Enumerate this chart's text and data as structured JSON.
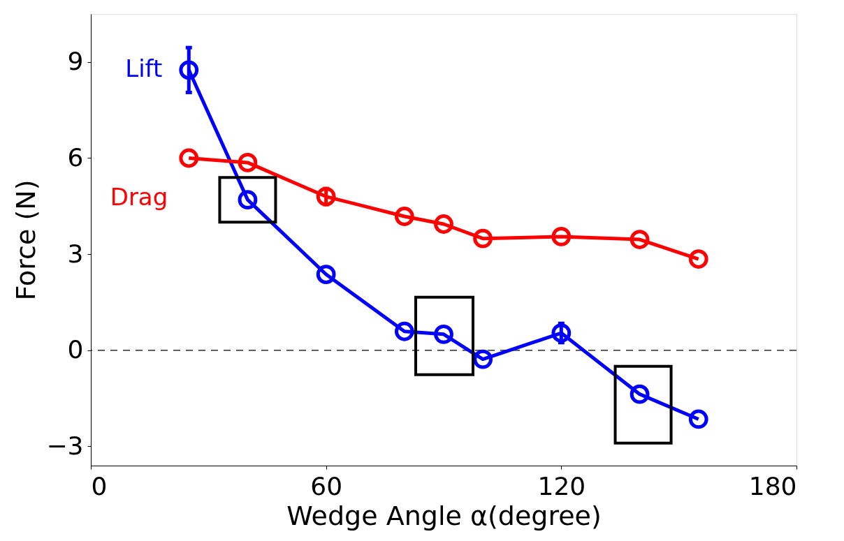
{
  "chart_data": {
    "type": "line",
    "xlabel": "Wedge Angle  α(degree)",
    "ylabel": "Force (N)",
    "x": [
      25,
      40,
      60,
      80,
      90,
      100,
      120,
      140,
      155
    ],
    "series": [
      {
        "name": "Lift",
        "color": "#0000ff",
        "values": [
          8.75,
          4.7,
          2.37,
          0.59,
          0.5,
          -0.28,
          0.54,
          -1.37,
          -2.15
        ],
        "errors": [
          0.7,
          null,
          null,
          null,
          null,
          null,
          0.3,
          null,
          null
        ]
      },
      {
        "name": "Drag",
        "color": "#ff0000",
        "values": [
          6.0,
          5.86,
          4.8,
          4.18,
          3.94,
          3.49,
          3.55,
          3.46,
          2.85
        ],
        "errors": [
          null,
          null,
          0.25,
          null,
          null,
          null,
          null,
          null,
          null
        ]
      }
    ],
    "xlim": [
      0,
      180
    ],
    "xticks": [
      0,
      60,
      120,
      180
    ],
    "ylim": [
      -3.6,
      10.5
    ],
    "yticks": [
      -3,
      0,
      3,
      6,
      9
    ],
    "ref_lines": [
      {
        "axis": "y",
        "value": 0,
        "color": "#000000",
        "line_style": "dashed"
      }
    ],
    "marker": "circle",
    "line_style": "solid",
    "legend": false,
    "grid": false
  }
}
